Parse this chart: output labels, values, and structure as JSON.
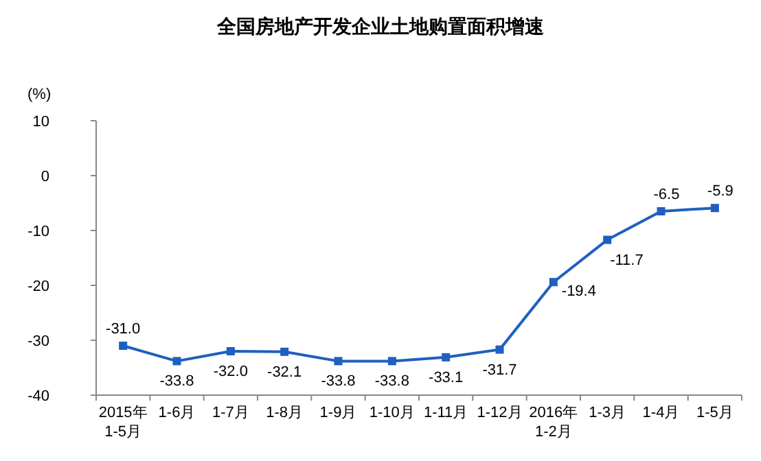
{
  "chart_data": {
    "type": "line",
    "title": "全国房地产开发企业土地购置面积增速",
    "ylabel": "(%)",
    "categories": [
      "2015年\n1-5月",
      "1-6月",
      "1-7月",
      "1-8月",
      "1-9月",
      "1-10月",
      "1-11月",
      "1-12月",
      "2016年\n1-2月",
      "1-3月",
      "1-4月",
      "1-5月"
    ],
    "series": [
      {
        "color": "#1f5fbf",
        "values": [
          -31.0,
          -33.8,
          -32.0,
          -32.1,
          -33.8,
          -33.8,
          -33.1,
          -31.7,
          -19.4,
          -11.7,
          -6.5,
          -5.9
        ],
        "value_labels": [
          "-31.0",
          "-33.8",
          "-32.0",
          "-32.1",
          "-33.8",
          "-33.8",
          "-33.1",
          "-31.7",
          "-19.4",
          "-11.7",
          "-6.5",
          "-5.9"
        ]
      }
    ],
    "ylim": [
      -40,
      10
    ],
    "yticks": [
      -40,
      -30,
      -20,
      -10,
      0,
      10
    ],
    "grid": false,
    "marker": "square",
    "line_style": "solid"
  }
}
